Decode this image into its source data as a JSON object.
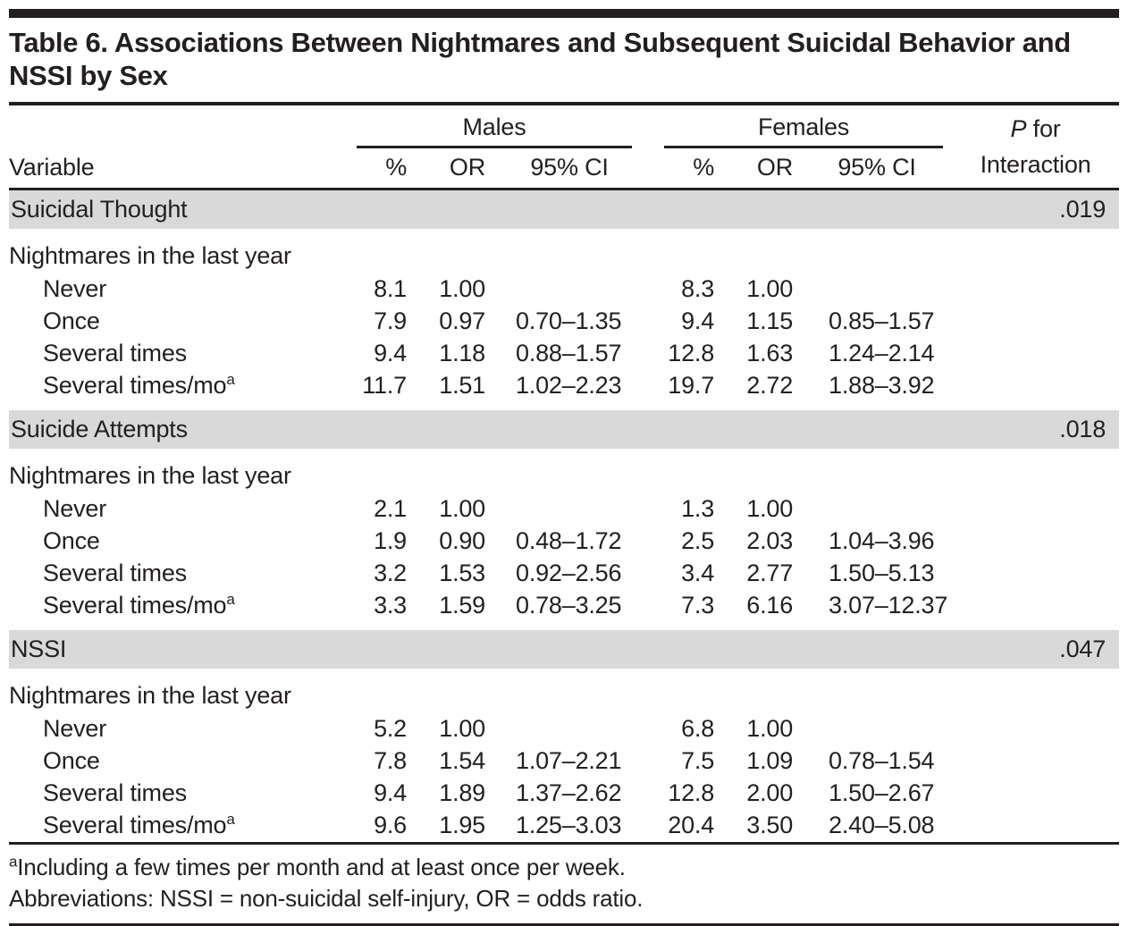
{
  "title": "Table 6. Associations Between Nightmares and Subsequent Suicidal Behavior and NSSI by Sex",
  "columns": {
    "variable": "Variable",
    "males": "Males",
    "females": "Females",
    "pct": "%",
    "or": "OR",
    "ci": "95% CI",
    "p_italic": "P",
    "p_rest": " for",
    "p_line2": "Interaction"
  },
  "sections": [
    {
      "label": "Suicidal Thought",
      "p_interaction": ".019",
      "subhead": "Nightmares in the last year",
      "rows": [
        {
          "label": "Never",
          "sup": "",
          "m_pct": "8.1",
          "m_or": "1.00",
          "m_ci": "",
          "f_pct": "8.3",
          "f_or": "1.00",
          "f_ci": ""
        },
        {
          "label": "Once",
          "sup": "",
          "m_pct": "7.9",
          "m_or": "0.97",
          "m_ci": "0.70–1.35",
          "f_pct": "9.4",
          "f_or": "1.15",
          "f_ci": "0.85–1.57"
        },
        {
          "label": "Several times",
          "sup": "",
          "m_pct": "9.4",
          "m_or": "1.18",
          "m_ci": "0.88–1.57",
          "f_pct": "12.8",
          "f_or": "1.63",
          "f_ci": "1.24–2.14"
        },
        {
          "label": "Several times/mo",
          "sup": "a",
          "m_pct": "11.7",
          "m_or": "1.51",
          "m_ci": "1.02–2.23",
          "f_pct": "19.7",
          "f_or": "2.72",
          "f_ci": "1.88–3.92"
        }
      ]
    },
    {
      "label": "Suicide Attempts",
      "p_interaction": ".018",
      "subhead": "Nightmares in the last year",
      "rows": [
        {
          "label": "Never",
          "sup": "",
          "m_pct": "2.1",
          "m_or": "1.00",
          "m_ci": "",
          "f_pct": "1.3",
          "f_or": "1.00",
          "f_ci": ""
        },
        {
          "label": "Once",
          "sup": "",
          "m_pct": "1.9",
          "m_or": "0.90",
          "m_ci": "0.48–1.72",
          "f_pct": "2.5",
          "f_or": "2.03",
          "f_ci": "1.04–3.96"
        },
        {
          "label": "Several times",
          "sup": "",
          "m_pct": "3.2",
          "m_or": "1.53",
          "m_ci": "0.92–2.56",
          "f_pct": "3.4",
          "f_or": "2.77",
          "f_ci": "1.50–5.13"
        },
        {
          "label": "Several times/mo",
          "sup": "a",
          "m_pct": "3.3",
          "m_or": "1.59",
          "m_ci": "0.78–3.25",
          "f_pct": "7.3",
          "f_or": "6.16",
          "f_ci": "3.07–12.37"
        }
      ]
    },
    {
      "label": "NSSI",
      "p_interaction": ".047",
      "subhead": "Nightmares in the last year",
      "rows": [
        {
          "label": "Never",
          "sup": "",
          "m_pct": "5.2",
          "m_or": "1.00",
          "m_ci": "",
          "f_pct": "6.8",
          "f_or": "1.00",
          "f_ci": ""
        },
        {
          "label": "Once",
          "sup": "",
          "m_pct": "7.8",
          "m_or": "1.54",
          "m_ci": "1.07–2.21",
          "f_pct": "7.5",
          "f_or": "1.09",
          "f_ci": "0.78–1.54"
        },
        {
          "label": "Several times",
          "sup": "",
          "m_pct": "9.4",
          "m_or": "1.89",
          "m_ci": "1.37–2.62",
          "f_pct": "12.8",
          "f_or": "2.00",
          "f_ci": "1.50–2.67"
        },
        {
          "label": "Several times/mo",
          "sup": "a",
          "m_pct": "9.6",
          "m_or": "1.95",
          "m_ci": "1.25–3.03",
          "f_pct": "20.4",
          "f_or": "3.50",
          "f_ci": "2.40–5.08"
        }
      ]
    }
  ],
  "footnotes": {
    "a_marker": "a",
    "a_text": "Including a few times per month and at least once per week.",
    "abbreviations": "Abbreviations: NSSI = non-suicidal self-injury, OR = odds ratio."
  },
  "colors": {
    "text": "#231f20",
    "section_band": "#d9d9d9",
    "rule": "#231f20"
  }
}
